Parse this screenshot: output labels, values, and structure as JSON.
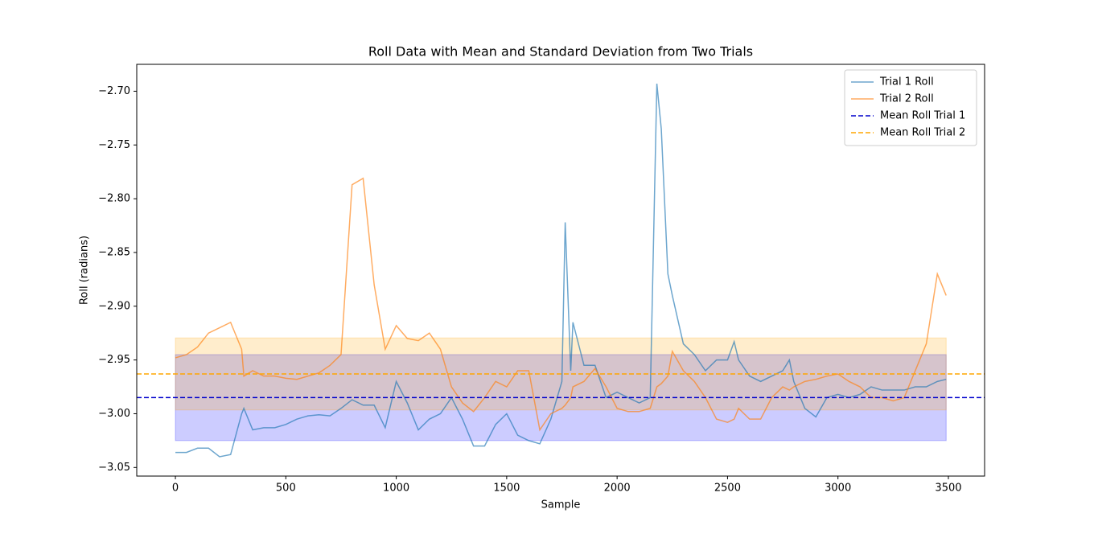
{
  "chart_data": {
    "type": "line",
    "title": "Roll Data with Mean and Standard Deviation from Two Trials",
    "xlabel": "Sample",
    "ylabel": "Roll (radians)",
    "xlim": [
      -175,
      3664
    ],
    "ylim": [
      -3.058,
      -2.675
    ],
    "xticks": [
      0,
      500,
      1000,
      1500,
      2000,
      2500,
      3000,
      3500
    ],
    "yticks": [
      {
        "value": -3.05,
        "label": "−3.05"
      },
      {
        "value": -3.0,
        "label": "−3.00"
      },
      {
        "value": -2.95,
        "label": "−2.95"
      },
      {
        "value": -2.9,
        "label": "−2.90"
      },
      {
        "value": -2.85,
        "label": "−2.85"
      },
      {
        "value": -2.8,
        "label": "−2.80"
      },
      {
        "value": -2.75,
        "label": "−2.75"
      },
      {
        "value": -2.7,
        "label": "−2.70"
      }
    ],
    "legend": "upper right",
    "x": [
      0,
      50,
      100,
      150,
      200,
      250,
      300,
      310,
      350,
      400,
      450,
      500,
      550,
      600,
      650,
      700,
      750,
      800,
      850,
      900,
      950,
      1000,
      1050,
      1100,
      1150,
      1200,
      1250,
      1300,
      1350,
      1400,
      1450,
      1500,
      1550,
      1600,
      1650,
      1700,
      1750,
      1765,
      1790,
      1800,
      1850,
      1900,
      1950,
      2000,
      2050,
      2100,
      2150,
      2180,
      2200,
      2230,
      2250,
      2300,
      2350,
      2400,
      2450,
      2500,
      2530,
      2550,
      2600,
      2650,
      2700,
      2750,
      2780,
      2800,
      2850,
      2900,
      2950,
      3000,
      3050,
      3100,
      3150,
      3200,
      3250,
      3300,
      3350,
      3400,
      3450,
      3490
    ],
    "series": [
      {
        "name": "Trial 1 Roll",
        "color": "#1f77b4",
        "values": [
          -3.036,
          -3.036,
          -3.032,
          -3.032,
          -3.04,
          -3.038,
          -3.0,
          -2.995,
          -3.015,
          -3.013,
          -3.013,
          -3.01,
          -3.005,
          -3.002,
          -3.001,
          -3.002,
          -2.995,
          -2.987,
          -2.992,
          -2.992,
          -3.013,
          -2.97,
          -2.99,
          -3.015,
          -3.005,
          -3.0,
          -2.985,
          -3.005,
          -3.03,
          -3.03,
          -3.01,
          -3.0,
          -3.02,
          -3.025,
          -3.028,
          -3.005,
          -2.97,
          -2.822,
          -2.96,
          -2.915,
          -2.955,
          -2.955,
          -2.985,
          -2.98,
          -2.985,
          -2.99,
          -2.985,
          -2.693,
          -2.735,
          -2.87,
          -2.89,
          -2.935,
          -2.945,
          -2.96,
          -2.95,
          -2.95,
          -2.933,
          -2.95,
          -2.965,
          -2.97,
          -2.965,
          -2.96,
          -2.95,
          -2.97,
          -2.995,
          -3.003,
          -2.985,
          -2.982,
          -2.985,
          -2.982,
          -2.975,
          -2.978,
          -2.978,
          -2.978,
          -2.975,
          -2.975,
          -2.97,
          -2.968
        ],
        "mean": {
          "name": "Mean Roll Trial 1",
          "value": -2.985,
          "color": "#0000cc"
        },
        "std": 0.04,
        "band_color": "#0000ff"
      },
      {
        "name": "Trial 2 Roll",
        "color": "#ff7f0e",
        "values": [
          -2.948,
          -2.945,
          -2.938,
          -2.925,
          -2.92,
          -2.915,
          -2.94,
          -2.965,
          -2.96,
          -2.965,
          -2.965,
          -2.967,
          -2.968,
          -2.965,
          -2.962,
          -2.955,
          -2.945,
          -2.787,
          -2.781,
          -2.88,
          -2.94,
          -2.918,
          -2.93,
          -2.932,
          -2.925,
          -2.94,
          -2.975,
          -2.99,
          -2.998,
          -2.985,
          -2.97,
          -2.975,
          -2.96,
          -2.96,
          -3.015,
          -3.0,
          -2.995,
          -2.992,
          -2.985,
          -2.975,
          -2.97,
          -2.958,
          -2.975,
          -2.995,
          -2.998,
          -2.998,
          -2.995,
          -2.975,
          -2.972,
          -2.965,
          -2.942,
          -2.96,
          -2.97,
          -2.985,
          -3.005,
          -3.008,
          -3.005,
          -2.995,
          -3.005,
          -3.005,
          -2.985,
          -2.975,
          -2.978,
          -2.975,
          -2.97,
          -2.968,
          -2.965,
          -2.963,
          -2.97,
          -2.975,
          -2.985,
          -2.985,
          -2.988,
          -2.985,
          -2.96,
          -2.935,
          -2.87,
          -2.89
        ],
        "mean": {
          "name": "Mean Roll Trial 2",
          "value": -2.963,
          "color": "#ffa500"
        },
        "std": 0.0335,
        "band_color": "#ffa500"
      }
    ]
  }
}
